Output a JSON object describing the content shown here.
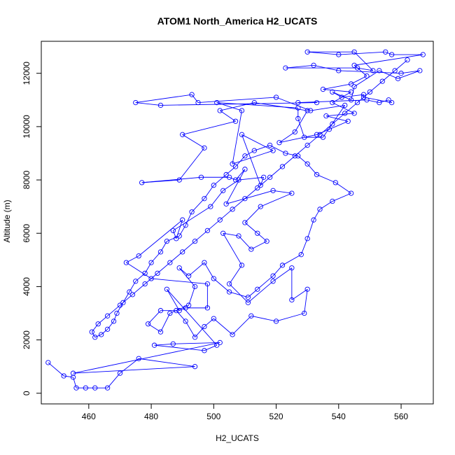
{
  "chart_data": {
    "type": "scatter",
    "title": "ATOM1 North_America H2_UCATS",
    "xlabel": "H2_UCATS",
    "ylabel": "Altitude (m)",
    "xlim": [
      444.8,
      570.3
    ],
    "ylim": [
      -400,
      13200
    ],
    "xticks": [
      460,
      480,
      500,
      520,
      540,
      560
    ],
    "yticks": [
      0,
      2000,
      4000,
      6000,
      8000,
      10000,
      12000
    ],
    "colors": {
      "series": "#0000ff",
      "axis": "#000000"
    },
    "grid": false,
    "legend": "none",
    "series": [
      {
        "mode": "lines+markers",
        "points": [
          [
            447,
            1150
          ],
          [
            452,
            650
          ],
          [
            455,
            600
          ],
          [
            456,
            200
          ],
          [
            459,
            200
          ],
          [
            462,
            200
          ],
          [
            466,
            200
          ],
          [
            470,
            750
          ],
          [
            476,
            1300
          ],
          [
            494,
            1000
          ],
          [
            455,
            750
          ],
          [
            502,
            1900
          ],
          [
            487,
            1850
          ],
          [
            481,
            1800
          ],
          [
            497,
            1600
          ],
          [
            501,
            1800
          ],
          [
            485,
            3900
          ],
          [
            489,
            3100
          ],
          [
            491,
            3200
          ],
          [
            498,
            3200
          ],
          [
            498,
            4100
          ],
          [
            480,
            4300
          ],
          [
            472,
            4900
          ],
          [
            476,
            5150
          ],
          [
            490,
            6500
          ],
          [
            488,
            5800
          ],
          [
            487,
            6100
          ],
          [
            499,
            7000
          ],
          [
            503,
            7600
          ],
          [
            508,
            8000
          ],
          [
            516,
            8100
          ],
          [
            515,
            7800
          ],
          [
            509,
            9700
          ],
          [
            519,
            9100
          ],
          [
            506,
            8600
          ],
          [
            509,
            10600
          ],
          [
            501,
            10900
          ],
          [
            527,
            10700
          ],
          [
            527,
            10300
          ],
          [
            529,
            9600
          ],
          [
            535,
            9600
          ],
          [
            542,
            10800
          ],
          [
            531,
            10600
          ],
          [
            520,
            11100
          ],
          [
            495,
            10900
          ],
          [
            493,
            11200
          ],
          [
            475,
            10900
          ],
          [
            483,
            10800
          ],
          [
            533,
            10900
          ],
          [
            527,
            10900
          ],
          [
            549,
            11000
          ],
          [
            553,
            10900
          ],
          [
            556,
            11000
          ],
          [
            557,
            10900
          ],
          [
            548,
            11100
          ],
          [
            548,
            11200
          ],
          [
            541,
            11100
          ],
          [
            538,
            11300
          ],
          [
            544,
            11000
          ],
          [
            545,
            11500
          ],
          [
            553,
            12100
          ],
          [
            559,
            11800
          ],
          [
            566,
            12100
          ],
          [
            560,
            12000
          ],
          [
            540,
            12100
          ],
          [
            532,
            12300
          ],
          [
            523,
            12200
          ],
          [
            546,
            12200
          ],
          [
            551,
            12100
          ],
          [
            545,
            12800
          ],
          [
            530,
            12800
          ],
          [
            540,
            12700
          ],
          [
            555,
            12800
          ],
          [
            557,
            12700
          ],
          [
            567,
            12700
          ],
          [
            545,
            12300
          ],
          [
            549,
            11900
          ],
          [
            544,
            11600
          ],
          [
            535,
            11400
          ],
          [
            544,
            11300
          ],
          [
            538,
            10900
          ],
          [
            545,
            10500
          ],
          [
            536,
            10400
          ],
          [
            543,
            10200
          ],
          [
            537,
            9900
          ],
          [
            533,
            9700
          ],
          [
            521,
            9400
          ],
          [
            526,
            9800
          ],
          [
            530,
            10600
          ],
          [
            513,
            10900
          ],
          [
            502,
            10600
          ],
          [
            507,
            10200
          ],
          [
            490,
            9700
          ],
          [
            497,
            9200
          ],
          [
            489,
            8000
          ],
          [
            477,
            7900
          ],
          [
            496,
            8100
          ],
          [
            505,
            8100
          ],
          [
            507,
            8000
          ],
          [
            510,
            8400
          ],
          [
            504,
            7100
          ],
          [
            519,
            7600
          ],
          [
            525,
            7500
          ],
          [
            515,
            7000
          ],
          [
            510,
            6400
          ],
          [
            514,
            6000
          ],
          [
            517,
            5700
          ],
          [
            512,
            5400
          ],
          [
            508,
            5900
          ],
          [
            503,
            6000
          ],
          [
            509,
            4800
          ],
          [
            505,
            4100
          ],
          [
            511,
            3400
          ],
          [
            519,
            4200
          ],
          [
            525,
            4700
          ],
          [
            525,
            3500
          ],
          [
            530,
            3900
          ],
          [
            529,
            3000
          ],
          [
            520,
            2700
          ],
          [
            512,
            2900
          ],
          [
            506,
            2200
          ],
          [
            500,
            2800
          ],
          [
            497,
            2500
          ],
          [
            494,
            2100
          ],
          [
            491,
            2700
          ],
          [
            488,
            3100
          ],
          [
            483,
            3100
          ],
          [
            479,
            2600
          ],
          [
            483,
            2300
          ],
          [
            486,
            3000
          ],
          [
            492,
            3300
          ],
          [
            494,
            4000
          ],
          [
            489,
            4700
          ],
          [
            492,
            4400
          ],
          [
            497,
            4900
          ],
          [
            500,
            4300
          ],
          [
            505,
            3800
          ],
          [
            511,
            3600
          ],
          [
            514,
            3900
          ],
          [
            519,
            4400
          ],
          [
            522,
            4800
          ],
          [
            528,
            5200
          ],
          [
            530,
            5800
          ],
          [
            532,
            6500
          ],
          [
            534,
            6900
          ],
          [
            538,
            7200
          ],
          [
            544,
            7500
          ],
          [
            539,
            7900
          ],
          [
            533,
            8200
          ],
          [
            530,
            8600
          ],
          [
            527,
            8900
          ],
          [
            523,
            9000
          ],
          [
            518,
            9300
          ],
          [
            513,
            9100
          ],
          [
            510,
            8900
          ],
          [
            507,
            8500
          ],
          [
            504,
            8200
          ],
          [
            500,
            7800
          ],
          [
            497,
            7300
          ],
          [
            493,
            6800
          ],
          [
            491,
            6300
          ],
          [
            489,
            5900
          ],
          [
            485,
            5700
          ],
          [
            483,
            5300
          ],
          [
            480,
            4900
          ],
          [
            478,
            4500
          ],
          [
            475,
            4200
          ],
          [
            473,
            3800
          ],
          [
            471,
            3400
          ],
          [
            469,
            3000
          ],
          [
            468,
            2700
          ],
          [
            466,
            2400
          ],
          [
            464,
            2200
          ],
          [
            462,
            2100
          ],
          [
            461,
            2300
          ],
          [
            463,
            2600
          ],
          [
            466,
            2900
          ],
          [
            470,
            3300
          ],
          [
            474,
            3700
          ],
          [
            478,
            4100
          ],
          [
            482,
            4500
          ],
          [
            486,
            4900
          ],
          [
            490,
            5300
          ],
          [
            494,
            5700
          ],
          [
            498,
            6100
          ],
          [
            502,
            6500
          ],
          [
            506,
            6900
          ],
          [
            510,
            7300
          ],
          [
            514,
            7700
          ],
          [
            518,
            8100
          ],
          [
            522,
            8500
          ],
          [
            526,
            8900
          ],
          [
            530,
            9300
          ],
          [
            534,
            9700
          ],
          [
            538,
            10100
          ],
          [
            542,
            10500
          ],
          [
            546,
            10900
          ],
          [
            550,
            11300
          ],
          [
            554,
            11700
          ],
          [
            558,
            12100
          ],
          [
            562,
            12500
          ]
        ]
      }
    ]
  }
}
